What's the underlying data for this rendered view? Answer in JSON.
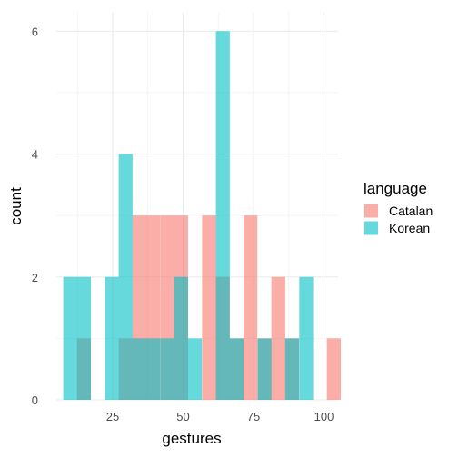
{
  "chart_data": {
    "type": "bar",
    "title": "",
    "xlabel": "gestures",
    "ylabel": "count",
    "xlim": [
      5,
      105
    ],
    "ylim": [
      0,
      6.3
    ],
    "x_ticks": [
      25,
      50,
      75,
      100
    ],
    "y_ticks": [
      0,
      2,
      4,
      6
    ],
    "bin_width": 4.93,
    "legend": {
      "title": "language",
      "position": "right"
    },
    "grid": true,
    "series": [
      {
        "name": "Catalan",
        "color": "#F8766D",
        "bins": [
          {
            "x": 14.8,
            "count": 1
          },
          {
            "x": 29.6,
            "count": 1
          },
          {
            "x": 34.5,
            "count": 3
          },
          {
            "x": 39.4,
            "count": 3
          },
          {
            "x": 44.4,
            "count": 3
          },
          {
            "x": 49.3,
            "count": 3
          },
          {
            "x": 59.2,
            "count": 3
          },
          {
            "x": 64.1,
            "count": 2
          },
          {
            "x": 69.0,
            "count": 1
          },
          {
            "x": 73.9,
            "count": 3
          },
          {
            "x": 78.9,
            "count": 1
          },
          {
            "x": 83.8,
            "count": 2
          },
          {
            "x": 88.7,
            "count": 1
          },
          {
            "x": 103.5,
            "count": 1
          }
        ]
      },
      {
        "name": "Korean",
        "color": "#00BFC4",
        "bins": [
          {
            "x": 9.9,
            "count": 2
          },
          {
            "x": 14.8,
            "count": 2
          },
          {
            "x": 24.7,
            "count": 2
          },
          {
            "x": 29.6,
            "count": 4
          },
          {
            "x": 34.5,
            "count": 1
          },
          {
            "x": 39.4,
            "count": 1
          },
          {
            "x": 44.4,
            "count": 1
          },
          {
            "x": 49.3,
            "count": 2
          },
          {
            "x": 54.2,
            "count": 1
          },
          {
            "x": 64.1,
            "count": 6
          },
          {
            "x": 69.0,
            "count": 1
          },
          {
            "x": 78.9,
            "count": 1
          },
          {
            "x": 88.7,
            "count": 1
          },
          {
            "x": 93.7,
            "count": 2
          }
        ]
      }
    ]
  }
}
